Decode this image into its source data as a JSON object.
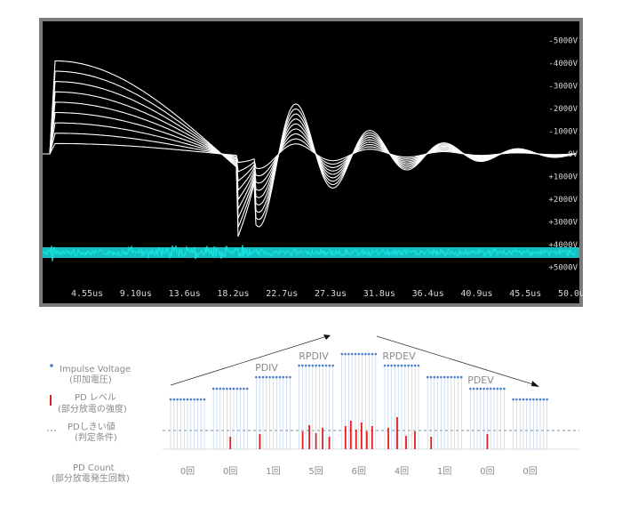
{
  "oscilloscope": {
    "voltage_scale": [
      "-5000V",
      "-4000V",
      "-3000V",
      "-2000V",
      "-1000V",
      "0V",
      "+1000V",
      "+2000V",
      "+3000V",
      "+4000V",
      "+5000V"
    ],
    "time_scale": [
      "4.55us",
      "9.10us",
      "13.6us",
      "18.2us",
      "22.7us",
      "27.3us",
      "31.8us",
      "36.4us",
      "40.9us",
      "45.5us",
      "50.0us"
    ],
    "colors": {
      "background": "#000000",
      "impulse_trace": "#ffffff",
      "pd_trace": "#18e0e0",
      "frame": "#7b7b7b"
    }
  },
  "legend": {
    "impulse_voltage": {
      "label": "Impulse Voltage",
      "sub": "(印加電圧)"
    },
    "pd_level": {
      "label": "PD レベル",
      "sub": "(部分放電の強度)"
    },
    "pd_threshold": {
      "label": "PDしきい値",
      "sub": "(判定条件)"
    },
    "pd_count": {
      "label": "PD Count",
      "sub": "(部分放電発生回数)"
    }
  },
  "stages": [
    "PDIV",
    "RPDIV",
    "RPDEV",
    "PDEV"
  ],
  "chart_data": {
    "type": "bar",
    "steps": [
      "1",
      "2",
      "3",
      "4",
      "5",
      "6",
      "7",
      "8",
      "9"
    ],
    "voltage_levels": [
      1,
      2,
      3,
      4,
      5,
      4,
      3,
      2,
      1
    ],
    "pd_counts": [
      0,
      0,
      1,
      5,
      6,
      4,
      1,
      0,
      0
    ],
    "pd_count_labels": [
      "0回",
      "0回",
      "1回",
      "5回",
      "6回",
      "4回",
      "1回",
      "0回",
      "0回"
    ],
    "colors": {
      "impulse": "#4a7cc9",
      "pd": "#e02020",
      "threshold": "#6a8fa8"
    }
  }
}
